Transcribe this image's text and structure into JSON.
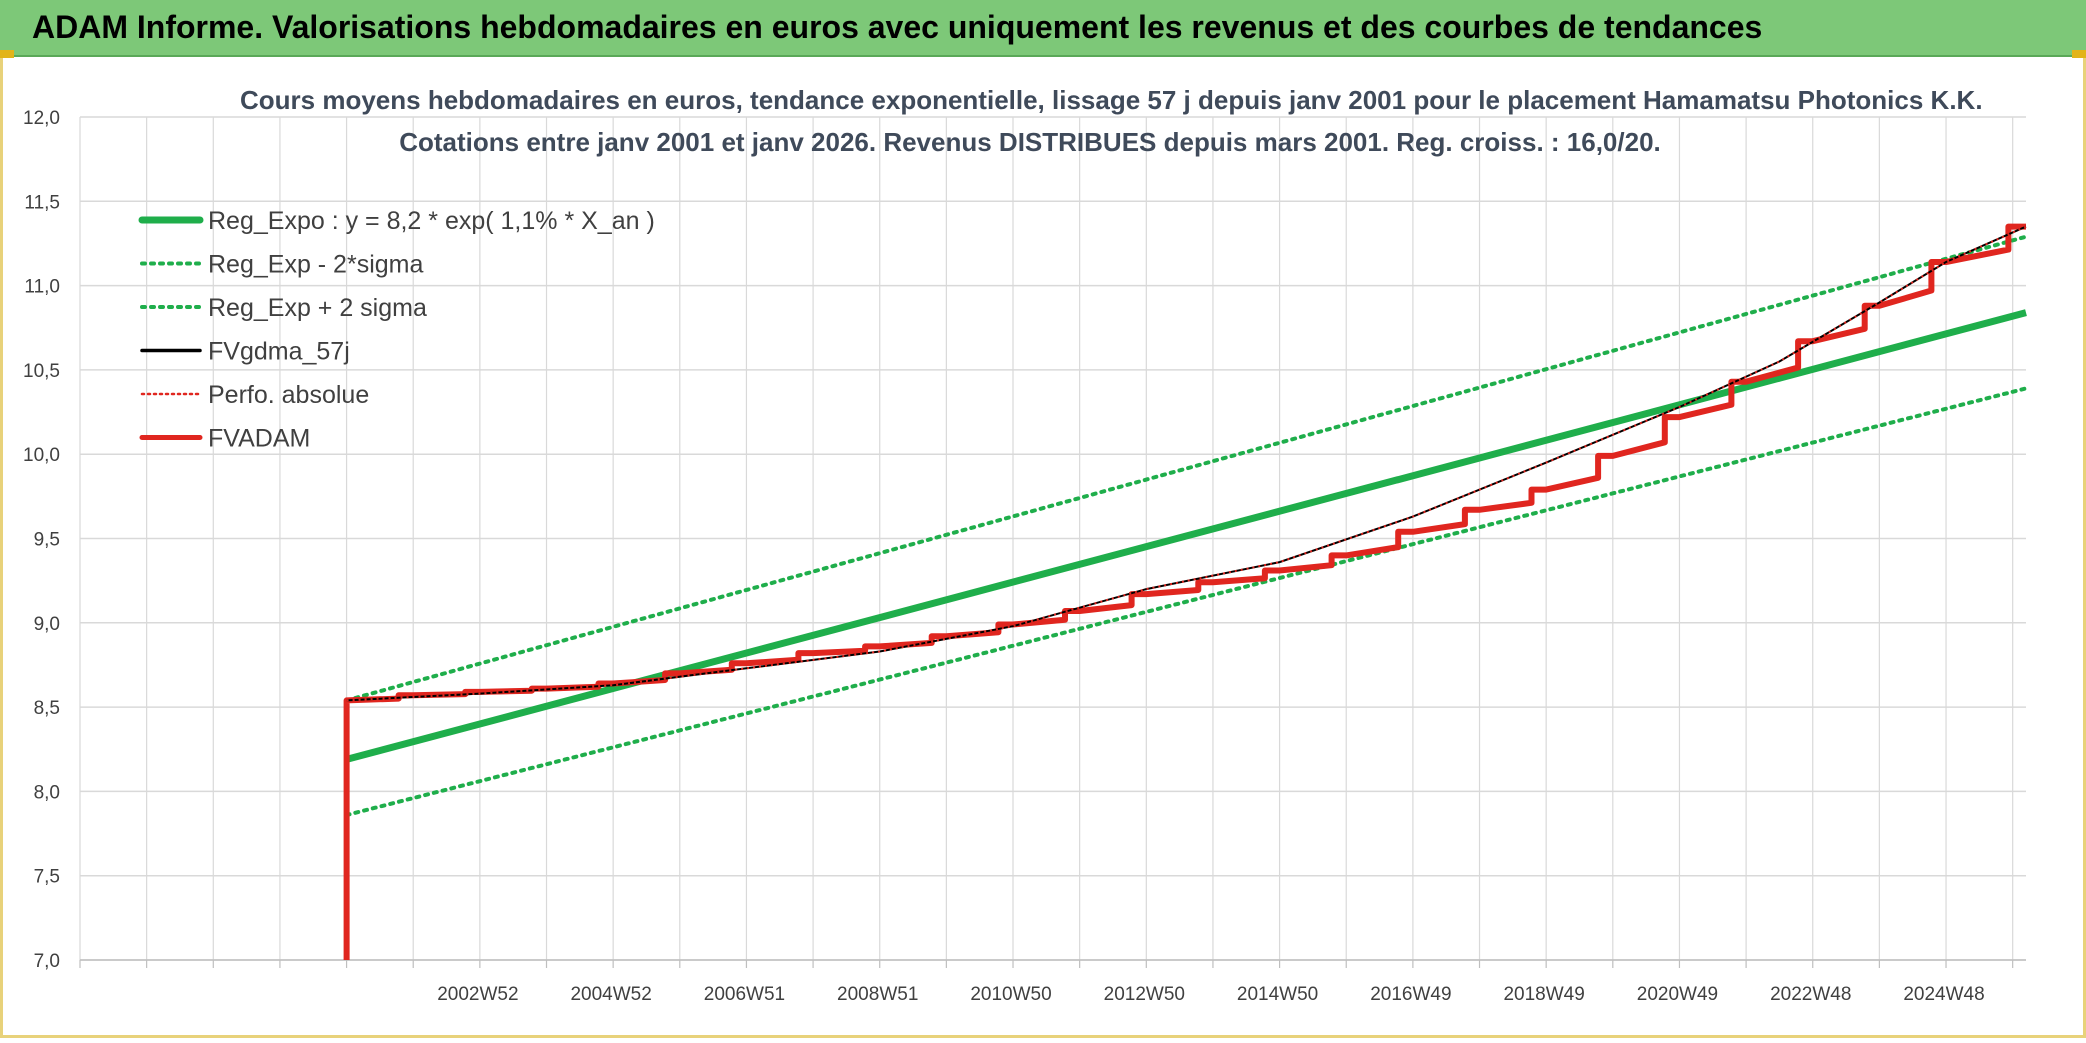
{
  "header": {
    "title": "ADAM Informe. Valorisations hebdomadaires en euros avec uniquement les revenus et des courbes de tendances"
  },
  "colors": {
    "title_bar": "#7dc878",
    "reg_expo": "#1fae4b",
    "band": "#1fae4b",
    "fvgdma": "#000000",
    "perfo": "#e0261f",
    "fvadam": "#e0261f",
    "grid": "#d9d9d9"
  },
  "chart_data": {
    "type": "line",
    "title": "Cours moyens hebdomadaires en euros, tendance exponentielle, lissage 57 j depuis janv 2001 pour le placement Hamamatsu Photonics K.K.",
    "subtitle": "Cotations entre janv 2001 et janv 2026. Revenus DISTRIBUES depuis mars 2001. Reg. croiss. : 16,0/20.",
    "ylim": [
      7.0,
      12.0
    ],
    "y_ticks": [
      "7,0",
      "7,5",
      "8,0",
      "8,5",
      "9,0",
      "9,5",
      "10,0",
      "10,5",
      "11,0",
      "11,5",
      "12,0"
    ],
    "x_tick_labels": [
      "2002W52",
      "2004W52",
      "2006W51",
      "2008W51",
      "2010W50",
      "2012W50",
      "2014W50",
      "2016W49",
      "2018W49",
      "2020W49",
      "2022W48",
      "2024W48"
    ],
    "xlim": [
      1997.0,
      2026.2
    ],
    "grid": true,
    "legend_position": "top-left",
    "series": [
      {
        "name": "Reg_Expo : y = 8,2 * exp( 1,1% *  X_an )",
        "style": "solid-thick",
        "x": [
          2001.0,
          2026.2
        ],
        "y": [
          8.19,
          10.84
        ]
      },
      {
        "name": "Reg_Exp - 2*sigma",
        "style": "dotted",
        "x": [
          2001.0,
          2026.2
        ],
        "y": [
          7.86,
          10.39
        ]
      },
      {
        "name": "Reg_Exp + 2 sigma",
        "style": "dotted",
        "x": [
          2001.0,
          2026.2
        ],
        "y": [
          8.54,
          11.29
        ]
      },
      {
        "name": "FVgdma_57j",
        "style": "solid-thin",
        "x": [
          2001.0,
          2003.0,
          2005.0,
          2007.0,
          2009.0,
          2011.0,
          2013.0,
          2015.0,
          2017.0,
          2019.0,
          2021.0,
          2022.5,
          2024.0,
          2025.0,
          2026.2
        ],
        "y": [
          8.54,
          8.58,
          8.63,
          8.73,
          8.83,
          8.98,
          9.2,
          9.36,
          9.63,
          9.95,
          10.28,
          10.55,
          10.9,
          11.14,
          11.35
        ]
      },
      {
        "name": "Perfo. absolue",
        "style": "dotted",
        "x": [
          2001.0,
          2003.0,
          2005.0,
          2007.0,
          2009.0,
          2011.0,
          2013.0,
          2015.0,
          2017.0,
          2019.0,
          2021.0,
          2022.5,
          2024.0,
          2025.0,
          2026.2
        ],
        "y": [
          8.54,
          8.58,
          8.63,
          8.73,
          8.83,
          8.98,
          9.2,
          9.36,
          9.63,
          9.95,
          10.28,
          10.55,
          10.9,
          11.14,
          11.35
        ]
      },
      {
        "name": "FVADAM",
        "style": "step-thick",
        "start": {
          "x": 2001.0,
          "y": 7.0
        },
        "x": [
          2001.0,
          2002.0,
          2003.0,
          2004.0,
          2005.0,
          2006.0,
          2007.0,
          2008.0,
          2009.0,
          2010.0,
          2011.0,
          2012.0,
          2013.0,
          2014.0,
          2015.0,
          2016.0,
          2017.0,
          2018.0,
          2019.0,
          2020.0,
          2021.0,
          2022.0,
          2023.0,
          2024.0,
          2025.0,
          2026.2
        ],
        "y": [
          8.54,
          8.57,
          8.59,
          8.61,
          8.64,
          8.7,
          8.76,
          8.82,
          8.86,
          8.92,
          8.99,
          9.07,
          9.17,
          9.24,
          9.31,
          9.4,
          9.54,
          9.67,
          9.79,
          9.99,
          10.22,
          10.43,
          10.67,
          10.88,
          11.14,
          11.35
        ]
      }
    ]
  }
}
